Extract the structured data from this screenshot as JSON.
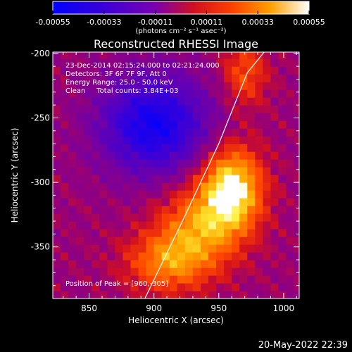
{
  "colorbar": {
    "ticks": [
      "-0.00055",
      "-0.00033",
      "-0.00011",
      "0.00011",
      "0.00033",
      "0.00055"
    ],
    "tick_values": [
      -0.00055,
      -0.00033,
      -0.00011,
      0.00011,
      0.00033,
      0.00055
    ],
    "units": "(photons cm⁻² s⁻¹ asec⁻²)",
    "range": [
      -0.00055,
      0.00055
    ]
  },
  "chart_data": {
    "type": "heatmap",
    "title": "Reconstructed RHESSI Image",
    "xlabel": "Heliocentric X (arcsec)",
    "ylabel": "Heliocentric Y (arcsec)",
    "xlim": [
      822,
      1012
    ],
    "ylim": [
      -390,
      -199
    ],
    "x_ticks": [
      850,
      900,
      950,
      1000
    ],
    "y_ticks": [
      -200,
      -250,
      -300,
      -350
    ],
    "annotations": [
      "23-Dec-2014 02:15:24.000 to 02:21:24.000",
      "Detectors: 3F 6F 7F 9F, Att 0",
      "Energy Range: 25.0 - 50.0 keV",
      "Clean     Total counts: 3.84E+03"
    ],
    "peak": {
      "label": "Position of Peak = [960,-305]",
      "x": 960,
      "y": -305,
      "value": 0.00055
    },
    "sources": [
      {
        "x": 960,
        "y": -305,
        "sx": 16,
        "sy": 22,
        "amp": 0.00055
      },
      {
        "x": 935,
        "y": -335,
        "sx": 22,
        "sy": 22,
        "amp": 0.00033
      },
      {
        "x": 910,
        "y": -362,
        "sx": 22,
        "sy": 16,
        "amp": 0.0003
      },
      {
        "x": 970,
        "y": -215,
        "sx": 12,
        "sy": 18,
        "amp": 0.00022
      }
    ],
    "negative_region": {
      "x": 900,
      "y": -255,
      "sx": 28,
      "sy": 26,
      "amp": -0.00048
    },
    "limb": {
      "x": [
        893,
        922,
        950,
        972,
        985
      ],
      "y": [
        -390,
        -330,
        -270,
        -215,
        -199
      ]
    }
  },
  "footer": {
    "date": "20-May-2022 22:39"
  }
}
